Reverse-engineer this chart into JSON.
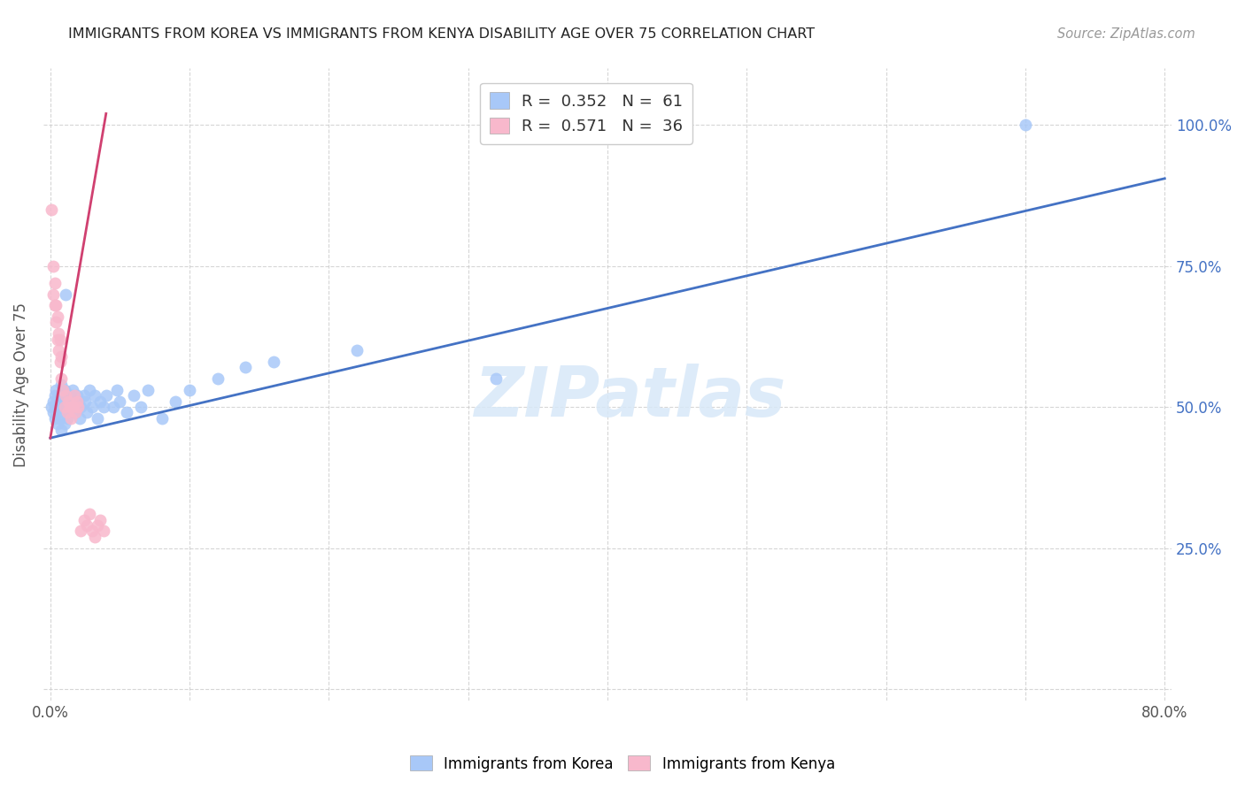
{
  "title": "IMMIGRANTS FROM KOREA VS IMMIGRANTS FROM KENYA DISABILITY AGE OVER 75 CORRELATION CHART",
  "source": "Source: ZipAtlas.com",
  "ylabel_label": "Disability Age Over 75",
  "korea_R": 0.352,
  "korea_N": 61,
  "kenya_R": 0.571,
  "kenya_N": 36,
  "korea_color": "#a8c8f8",
  "kenya_color": "#f8b8cc",
  "korea_line_color": "#4472c4",
  "kenya_line_color": "#d04070",
  "korea_x": [
    0.001,
    0.002,
    0.002,
    0.003,
    0.003,
    0.004,
    0.004,
    0.005,
    0.005,
    0.006,
    0.006,
    0.007,
    0.007,
    0.008,
    0.008,
    0.009,
    0.009,
    0.01,
    0.01,
    0.011,
    0.011,
    0.012,
    0.012,
    0.013,
    0.014,
    0.015,
    0.015,
    0.016,
    0.016,
    0.017,
    0.018,
    0.019,
    0.02,
    0.021,
    0.022,
    0.024,
    0.025,
    0.026,
    0.028,
    0.03,
    0.032,
    0.034,
    0.036,
    0.038,
    0.04,
    0.045,
    0.048,
    0.05,
    0.055,
    0.06,
    0.065,
    0.07,
    0.08,
    0.09,
    0.1,
    0.12,
    0.14,
    0.16,
    0.22,
    0.32,
    0.7
  ],
  "korea_y": [
    0.5,
    0.49,
    0.51,
    0.48,
    0.52,
    0.5,
    0.53,
    0.47,
    0.51,
    0.49,
    0.52,
    0.48,
    0.5,
    0.54,
    0.46,
    0.5,
    0.51,
    0.47,
    0.53,
    0.7,
    0.5,
    0.48,
    0.52,
    0.51,
    0.49,
    0.5,
    0.52,
    0.53,
    0.51,
    0.5,
    0.49,
    0.52,
    0.51,
    0.48,
    0.5,
    0.52,
    0.51,
    0.49,
    0.53,
    0.5,
    0.52,
    0.48,
    0.51,
    0.5,
    0.52,
    0.5,
    0.53,
    0.51,
    0.49,
    0.52,
    0.5,
    0.53,
    0.48,
    0.51,
    0.53,
    0.55,
    0.57,
    0.58,
    0.6,
    0.55,
    1.0
  ],
  "kenya_x": [
    0.001,
    0.002,
    0.002,
    0.003,
    0.003,
    0.004,
    0.004,
    0.005,
    0.005,
    0.006,
    0.006,
    0.007,
    0.007,
    0.008,
    0.008,
    0.009,
    0.01,
    0.011,
    0.012,
    0.013,
    0.014,
    0.015,
    0.016,
    0.017,
    0.018,
    0.019,
    0.02,
    0.022,
    0.024,
    0.026,
    0.028,
    0.03,
    0.032,
    0.034,
    0.036,
    0.038
  ],
  "kenya_y": [
    0.85,
    0.75,
    0.7,
    0.68,
    0.72,
    0.65,
    0.68,
    0.62,
    0.66,
    0.6,
    0.63,
    0.58,
    0.62,
    0.55,
    0.59,
    0.53,
    0.5,
    0.52,
    0.49,
    0.51,
    0.5,
    0.48,
    0.5,
    0.52,
    0.49,
    0.51,
    0.5,
    0.28,
    0.3,
    0.29,
    0.31,
    0.28,
    0.27,
    0.29,
    0.3,
    0.28
  ],
  "korea_line_x": [
    0.0,
    0.8
  ],
  "korea_line_y": [
    0.445,
    0.905
  ],
  "kenya_line_x": [
    0.0,
    0.04
  ],
  "kenya_line_y": [
    0.445,
    1.02
  ],
  "xlim_min": -0.005,
  "xlim_max": 0.805,
  "ylim_min": -0.02,
  "ylim_max": 1.1,
  "x_ticks": [
    0.0,
    0.1,
    0.2,
    0.3,
    0.4,
    0.5,
    0.6,
    0.7,
    0.8
  ],
  "x_tick_labels": [
    "0.0%",
    "",
    "",
    "",
    "",
    "",
    "",
    "",
    "80.0%"
  ],
  "y_ticks": [
    0.0,
    0.25,
    0.5,
    0.75,
    1.0
  ],
  "y_tick_labels_right": [
    "",
    "25.0%",
    "50.0%",
    "75.0%",
    "100.0%"
  ]
}
